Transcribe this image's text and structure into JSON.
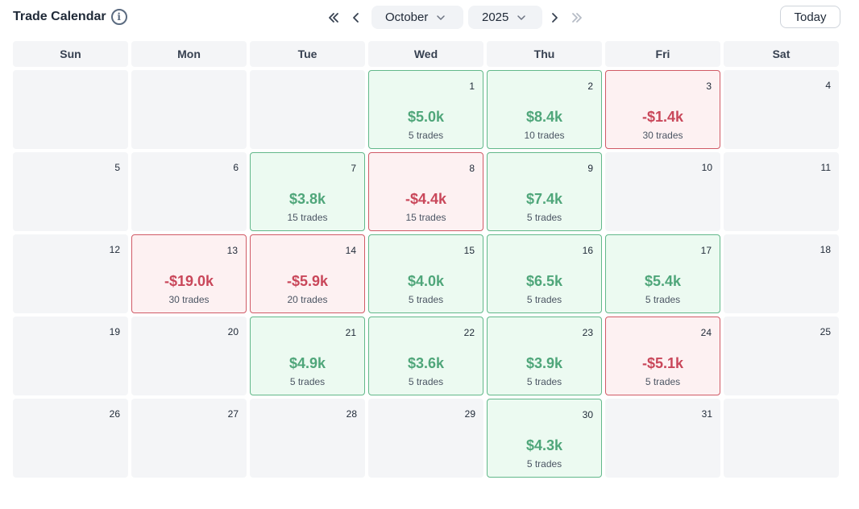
{
  "header": {
    "title": "Trade Calendar",
    "info_glyph": "i",
    "month": "October",
    "year": "2025",
    "today_label": "Today"
  },
  "days_of_week": [
    "Sun",
    "Mon",
    "Tue",
    "Wed",
    "Thu",
    "Fri",
    "Sat"
  ],
  "colors": {
    "profit": "#4fa67a",
    "loss": "#c9475a",
    "profit_bg": "#ecfaf1",
    "loss_bg": "#fdf1f2"
  },
  "calendar": {
    "days": [
      {
        "day": "",
        "pnl": "",
        "trades": "",
        "status": "empty"
      },
      {
        "day": "",
        "pnl": "",
        "trades": "",
        "status": "empty"
      },
      {
        "day": "",
        "pnl": "",
        "trades": "",
        "status": "empty"
      },
      {
        "day": "1",
        "pnl": "$5.0k",
        "trades": "5 trades",
        "status": "win"
      },
      {
        "day": "2",
        "pnl": "$8.4k",
        "trades": "10 trades",
        "status": "win"
      },
      {
        "day": "3",
        "pnl": "-$1.4k",
        "trades": "30 trades",
        "status": "loss"
      },
      {
        "day": "4",
        "pnl": "",
        "trades": "",
        "status": "none"
      },
      {
        "day": "5",
        "pnl": "",
        "trades": "",
        "status": "none"
      },
      {
        "day": "6",
        "pnl": "",
        "trades": "",
        "status": "none"
      },
      {
        "day": "7",
        "pnl": "$3.8k",
        "trades": "15 trades",
        "status": "win"
      },
      {
        "day": "8",
        "pnl": "-$4.4k",
        "trades": "15 trades",
        "status": "loss"
      },
      {
        "day": "9",
        "pnl": "$7.4k",
        "trades": "5 trades",
        "status": "win"
      },
      {
        "day": "10",
        "pnl": "",
        "trades": "",
        "status": "none"
      },
      {
        "day": "11",
        "pnl": "",
        "trades": "",
        "status": "none"
      },
      {
        "day": "12",
        "pnl": "",
        "trades": "",
        "status": "none"
      },
      {
        "day": "13",
        "pnl": "-$19.0k",
        "trades": "30 trades",
        "status": "loss"
      },
      {
        "day": "14",
        "pnl": "-$5.9k",
        "trades": "20 trades",
        "status": "loss"
      },
      {
        "day": "15",
        "pnl": "$4.0k",
        "trades": "5 trades",
        "status": "win"
      },
      {
        "day": "16",
        "pnl": "$6.5k",
        "trades": "5 trades",
        "status": "win"
      },
      {
        "day": "17",
        "pnl": "$5.4k",
        "trades": "5 trades",
        "status": "win"
      },
      {
        "day": "18",
        "pnl": "",
        "trades": "",
        "status": "none"
      },
      {
        "day": "19",
        "pnl": "",
        "trades": "",
        "status": "none"
      },
      {
        "day": "20",
        "pnl": "",
        "trades": "",
        "status": "none"
      },
      {
        "day": "21",
        "pnl": "$4.9k",
        "trades": "5 trades",
        "status": "win"
      },
      {
        "day": "22",
        "pnl": "$3.6k",
        "trades": "5 trades",
        "status": "win"
      },
      {
        "day": "23",
        "pnl": "$3.9k",
        "trades": "5 trades",
        "status": "win"
      },
      {
        "day": "24",
        "pnl": "-$5.1k",
        "trades": "5 trades",
        "status": "loss"
      },
      {
        "day": "25",
        "pnl": "",
        "trades": "",
        "status": "none"
      },
      {
        "day": "26",
        "pnl": "",
        "trades": "",
        "status": "none"
      },
      {
        "day": "27",
        "pnl": "",
        "trades": "",
        "status": "none"
      },
      {
        "day": "28",
        "pnl": "",
        "trades": "",
        "status": "none"
      },
      {
        "day": "29",
        "pnl": "",
        "trades": "",
        "status": "none"
      },
      {
        "day": "30",
        "pnl": "$4.3k",
        "trades": "5 trades",
        "status": "win"
      },
      {
        "day": "31",
        "pnl": "",
        "trades": "",
        "status": "none"
      },
      {
        "day": "",
        "pnl": "",
        "trades": "",
        "status": "empty"
      }
    ]
  }
}
